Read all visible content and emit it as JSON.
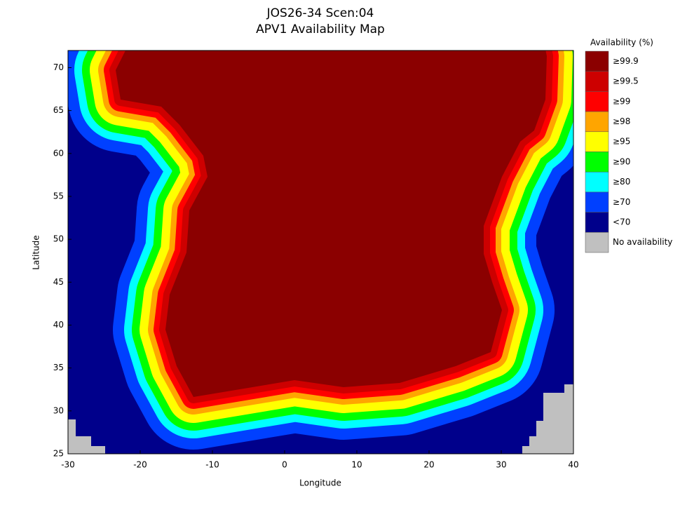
{
  "chart_data": {
    "type": "contour-map",
    "title": "JOS26-34 Scen:04",
    "subtitle": "APV1 Availability Map",
    "xlabel": "Longitude",
    "ylabel": "Latitude",
    "xlim": [
      -30,
      40
    ],
    "ylim": [
      25,
      72
    ],
    "xticks": [
      -30,
      -20,
      -10,
      0,
      10,
      20,
      30,
      40
    ],
    "yticks": [
      25,
      30,
      35,
      40,
      45,
      50,
      55,
      60,
      65,
      70
    ],
    "legend_title": "Availability (%)",
    "legend": [
      {
        "label": "≥99.9",
        "color": "#8b0000"
      },
      {
        "label": "≥99.5",
        "color": "#cd0000"
      },
      {
        "label": "≥99",
        "color": "#ff0000"
      },
      {
        "label": "≥98",
        "color": "#ffa500"
      },
      {
        "label": "≥95",
        "color": "#ffff00"
      },
      {
        "label": "≥90",
        "color": "#00ff00"
      },
      {
        "label": "≥80",
        "color": "#00ffff"
      },
      {
        "label": "≥70",
        "color": "#0040ff"
      },
      {
        "label": "<70",
        "color": "#00008b"
      },
      {
        "label": "No availability",
        "color": "#c0c0c0"
      }
    ]
  }
}
